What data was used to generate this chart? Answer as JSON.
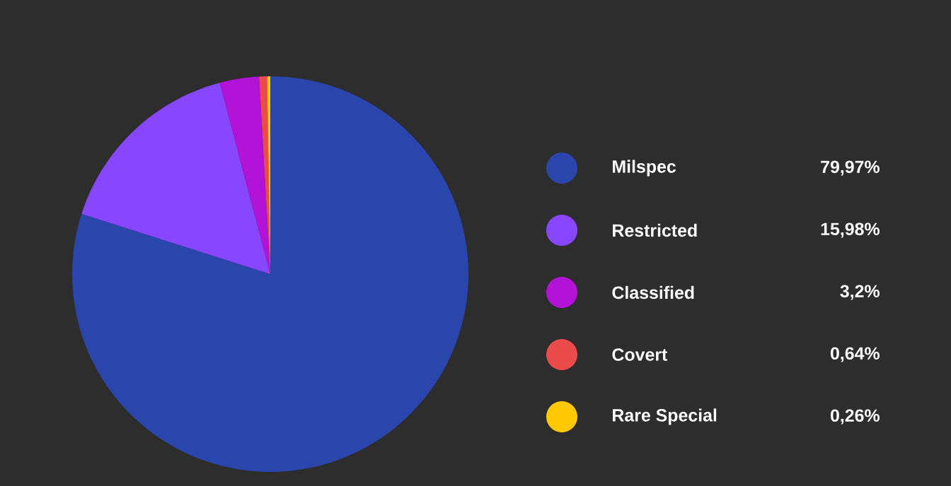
{
  "chart_data": {
    "type": "pie",
    "categories": [
      "Milspec",
      "Restricted",
      "Classified",
      "Covert",
      "Rare Special"
    ],
    "values": [
      79.97,
      15.98,
      3.2,
      0.64,
      0.26
    ],
    "value_labels": [
      "79,97%",
      "15,98%",
      "3,2%",
      "0,64%",
      "0,26%"
    ],
    "colors": [
      "#2a46ad",
      "#8847ff",
      "#b213d6",
      "#eb4b4b",
      "#ffc800"
    ],
    "legend": "right"
  }
}
